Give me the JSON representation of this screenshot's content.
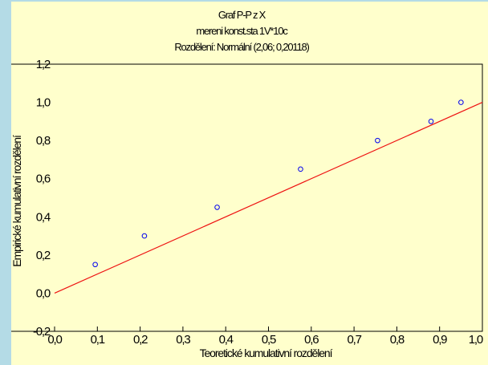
{
  "chart_data": {
    "type": "scatter",
    "title_lines": [
      "Graf P-P z X",
      "mereni konst.sta 1V*10c",
      "Rozdělení: Normální (2,06; 0,20118)"
    ],
    "xlabel": "Teoretické kumulativní rozdělení",
    "ylabel": "Empirické kumulativní rozdělení",
    "xlim": [
      0.0,
      1.0
    ],
    "ylim": [
      -0.2,
      1.2
    ],
    "xticks": [
      0.0,
      0.1,
      0.2,
      0.3,
      0.4,
      0.5,
      0.6,
      0.7,
      0.8,
      0.9,
      1.0
    ],
    "xtick_labels": [
      "0,0",
      "0,1",
      "0,2",
      "0,3",
      "0,4",
      "0,5",
      "0,6",
      "0,7",
      "0,8",
      "0,9",
      "1,0"
    ],
    "yticks": [
      -0.2,
      0.0,
      0.2,
      0.4,
      0.6,
      0.8,
      1.0,
      1.2
    ],
    "ytick_labels": [
      "-0,2",
      "0,0",
      "0,2",
      "0,4",
      "0,6",
      "0,8",
      "1,0",
      "1,2"
    ],
    "grid": false,
    "points": [
      {
        "x": 0.095,
        "y": 0.15
      },
      {
        "x": 0.21,
        "y": 0.3
      },
      {
        "x": 0.38,
        "y": 0.45
      },
      {
        "x": 0.575,
        "y": 0.65
      },
      {
        "x": 0.755,
        "y": 0.8
      },
      {
        "x": 0.88,
        "y": 0.9
      },
      {
        "x": 0.95,
        "y": 1.0
      }
    ],
    "reference_line": {
      "from": [
        0.0,
        0.0
      ],
      "to": [
        1.0,
        1.0
      ]
    },
    "colors": {
      "points": "#0000ee",
      "line": "#ee1111",
      "background": "#ffffcc",
      "outer": "#b4dbe6"
    }
  }
}
